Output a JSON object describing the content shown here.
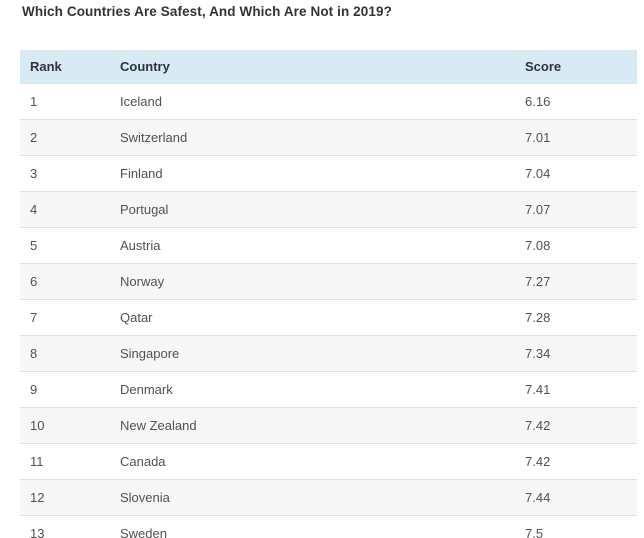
{
  "title": "Which Countries Are Safest, And Which Are Not in 2019?",
  "table": {
    "columns": [
      "Rank",
      "Country",
      "Score"
    ],
    "rows": [
      {
        "rank": "1",
        "country": "Iceland",
        "score": "6.16"
      },
      {
        "rank": "2",
        "country": "Switzerland",
        "score": "7.01"
      },
      {
        "rank": "3",
        "country": "Finland",
        "score": "7.04"
      },
      {
        "rank": "4",
        "country": "Portugal",
        "score": "7.07"
      },
      {
        "rank": "5",
        "country": "Austria",
        "score": "7.08"
      },
      {
        "rank": "6",
        "country": "Norway",
        "score": "7.27"
      },
      {
        "rank": "7",
        "country": "Qatar",
        "score": "7.28"
      },
      {
        "rank": "8",
        "country": "Singapore",
        "score": "7.34"
      },
      {
        "rank": "9",
        "country": "Denmark",
        "score": "7.41"
      },
      {
        "rank": "10",
        "country": "New Zealand",
        "score": "7.42"
      },
      {
        "rank": "11",
        "country": "Canada",
        "score": "7.42"
      },
      {
        "rank": "12",
        "country": "Slovenia",
        "score": "7.44"
      },
      {
        "rank": "13",
        "country": "Sweden",
        "score": "7.5"
      }
    ]
  },
  "chart_data": {
    "type": "table",
    "title": "Which Countries Are Safest, And Which Are Not in 2019?",
    "columns": [
      "Rank",
      "Country",
      "Score"
    ],
    "rows": [
      [
        1,
        "Iceland",
        6.16
      ],
      [
        2,
        "Switzerland",
        7.01
      ],
      [
        3,
        "Finland",
        7.04
      ],
      [
        4,
        "Portugal",
        7.07
      ],
      [
        5,
        "Austria",
        7.08
      ],
      [
        6,
        "Norway",
        7.27
      ],
      [
        7,
        "Qatar",
        7.28
      ],
      [
        8,
        "Singapore",
        7.34
      ],
      [
        9,
        "Denmark",
        7.41
      ],
      [
        10,
        "New Zealand",
        7.42
      ],
      [
        11,
        "Canada",
        7.42
      ],
      [
        12,
        "Slovenia",
        7.44
      ],
      [
        13,
        "Sweden",
        7.5
      ]
    ],
    "layout_hints": {
      "header_position": "top",
      "row_striping": "even rows shaded",
      "column_alignment": [
        "left",
        "left",
        "left"
      ],
      "last_row_clipped": true
    }
  },
  "colors": {
    "header_bg": "#d8eaf3",
    "alt_row_bg": "#f7f7f7",
    "row_border": "#e0e0e0",
    "title_text": "#333333",
    "header_text": "#2c353c",
    "cell_text": "#515151",
    "page_bg": "#ffffff"
  }
}
